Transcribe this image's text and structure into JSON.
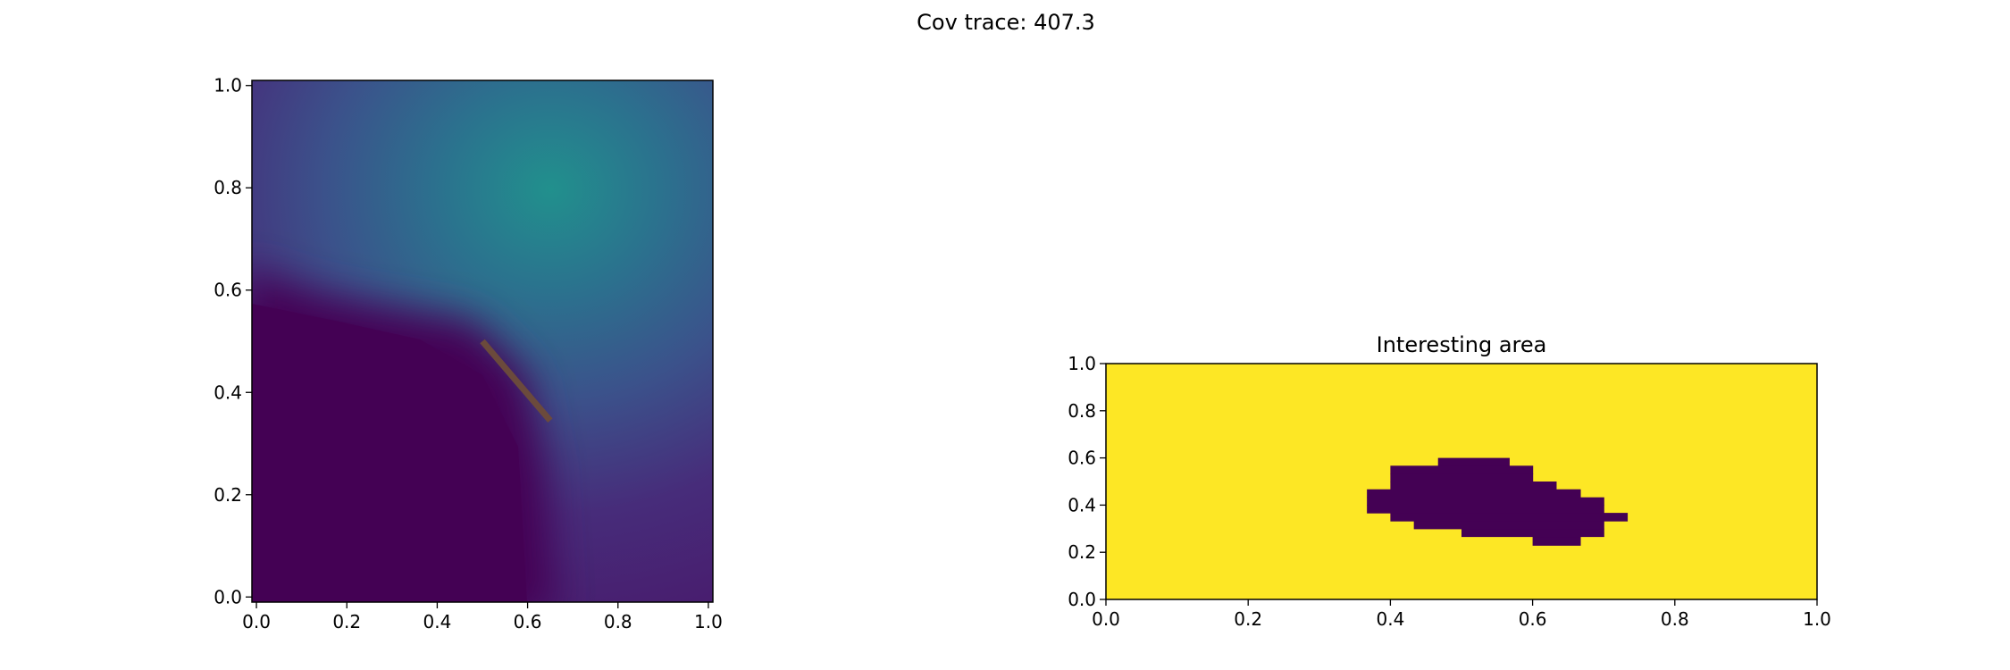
{
  "figure": {
    "suptitle": "Cov trace: 407.3"
  },
  "chart_data": [
    {
      "type": "heatmap",
      "title": "",
      "xlabel": "",
      "ylabel": "",
      "xlim": [
        -0.01,
        1.01
      ],
      "ylim": [
        -0.01,
        1.01
      ],
      "xticks": [
        "0.0",
        "0.2",
        "0.4",
        "0.6",
        "0.8",
        "1.0"
      ],
      "yticks": [
        "0.0",
        "0.2",
        "0.4",
        "0.6",
        "0.8",
        "1.0"
      ],
      "colormap": "viridis",
      "field_peak": {
        "x": 0.67,
        "y": 0.8
      },
      "low_region": "lower-left (x < 0.6, y < 0.65)",
      "overlay_path": {
        "color": "#6b4a3c",
        "points": [
          [
            0.5,
            0.5
          ],
          [
            0.65,
            0.345
          ]
        ]
      },
      "grid": false
    },
    {
      "type": "heatmap",
      "title": "Interesting area",
      "xlabel": "",
      "ylabel": "",
      "xlim": [
        0.0,
        1.0
      ],
      "ylim": [
        0.0,
        1.0
      ],
      "xticks": [
        "0.0",
        "0.2",
        "0.4",
        "0.6",
        "0.8",
        "1.0"
      ],
      "yticks": [
        "0.0",
        "0.2",
        "0.4",
        "0.6",
        "0.8",
        "1.0"
      ],
      "colors": {
        "true": "#fde725",
        "false": "#440154"
      },
      "cell_size": 0.0333,
      "false_cells_by_row": [
        {
          "y": [
            0.23,
            0.267
          ],
          "x": [
            [
              0.6,
              0.667
            ]
          ]
        },
        {
          "y": [
            0.267,
            0.3
          ],
          "x": [
            [
              0.5,
              0.7
            ]
          ]
        },
        {
          "y": [
            0.3,
            0.333
          ],
          "x": [
            [
              0.433,
              0.7
            ]
          ]
        },
        {
          "y": [
            0.333,
            0.367
          ],
          "x": [
            [
              0.4,
              0.733
            ]
          ]
        },
        {
          "y": [
            0.367,
            0.4
          ],
          "x": [
            [
              0.367,
              0.7
            ]
          ]
        },
        {
          "y": [
            0.4,
            0.433
          ],
          "x": [
            [
              0.367,
              0.7
            ]
          ]
        },
        {
          "y": [
            0.433,
            0.467
          ],
          "x": [
            [
              0.367,
              0.667
            ]
          ]
        },
        {
          "y": [
            0.467,
            0.5
          ],
          "x": [
            [
              0.4,
              0.633
            ]
          ]
        },
        {
          "y": [
            0.5,
            0.533
          ],
          "x": [
            [
              0.4,
              0.6
            ]
          ]
        },
        {
          "y": [
            0.533,
            0.567
          ],
          "x": [
            [
              0.4,
              0.6
            ]
          ]
        },
        {
          "y": [
            0.567,
            0.6
          ],
          "x": [
            [
              0.467,
              0.567
            ]
          ]
        }
      ],
      "grid": false
    }
  ]
}
